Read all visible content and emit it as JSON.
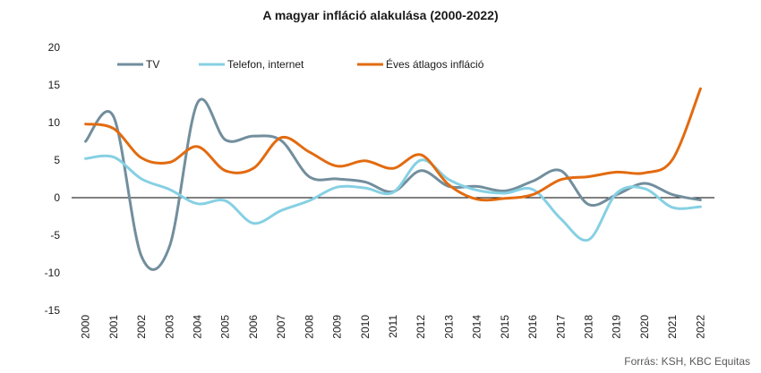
{
  "source": "Forrás: KSH, KBC Equitas",
  "chart_data": {
    "type": "line",
    "title": "A magyar infláció alakulása (2000-2022)",
    "xlabel": "",
    "ylabel": "",
    "categories": [
      "2000",
      "2001",
      "2002",
      "2003",
      "2004",
      "2005",
      "2006",
      "2007",
      "2008",
      "2009",
      "2010",
      "2011",
      "2012",
      "2013",
      "2014",
      "2015",
      "2016",
      "2017",
      "2018",
      "2019",
      "2020",
      "2021",
      "2022"
    ],
    "ylim": [
      -15,
      20
    ],
    "yticks": [
      20,
      15,
      10,
      5,
      0,
      -5,
      -10,
      -15
    ],
    "grid": false,
    "legend": "top-left",
    "zero_line_color": "#000000",
    "series": [
      {
        "name": "TV",
        "color": "#728E9D",
        "values": [
          7.5,
          10.8,
          -7.8,
          -6.5,
          12.6,
          7.7,
          8.2,
          7.6,
          2.8,
          2.5,
          2.1,
          0.8,
          3.6,
          1.5,
          1.5,
          0.9,
          2.2,
          3.6,
          -0.9,
          0.4,
          1.9,
          0.4,
          -0.3
        ]
      },
      {
        "name": "Telefon, internet",
        "color": "#86D0E3",
        "values": [
          5.2,
          5.4,
          2.5,
          1.1,
          -0.8,
          -0.4,
          -3.4,
          -1.7,
          -0.4,
          1.4,
          1.3,
          0.7,
          5.0,
          2.4,
          1.0,
          0.6,
          1.1,
          -2.8,
          -5.6,
          0.6,
          1.2,
          -1.3,
          -1.2
        ]
      },
      {
        "name": "Éves átlagos infláció",
        "color": "#E26B10",
        "values": [
          9.8,
          9.2,
          5.3,
          4.7,
          6.8,
          3.6,
          3.9,
          8.0,
          6.1,
          4.2,
          4.9,
          3.9,
          5.7,
          1.7,
          -0.2,
          -0.1,
          0.4,
          2.4,
          2.8,
          3.4,
          3.3,
          5.1,
          14.5
        ]
      }
    ]
  }
}
